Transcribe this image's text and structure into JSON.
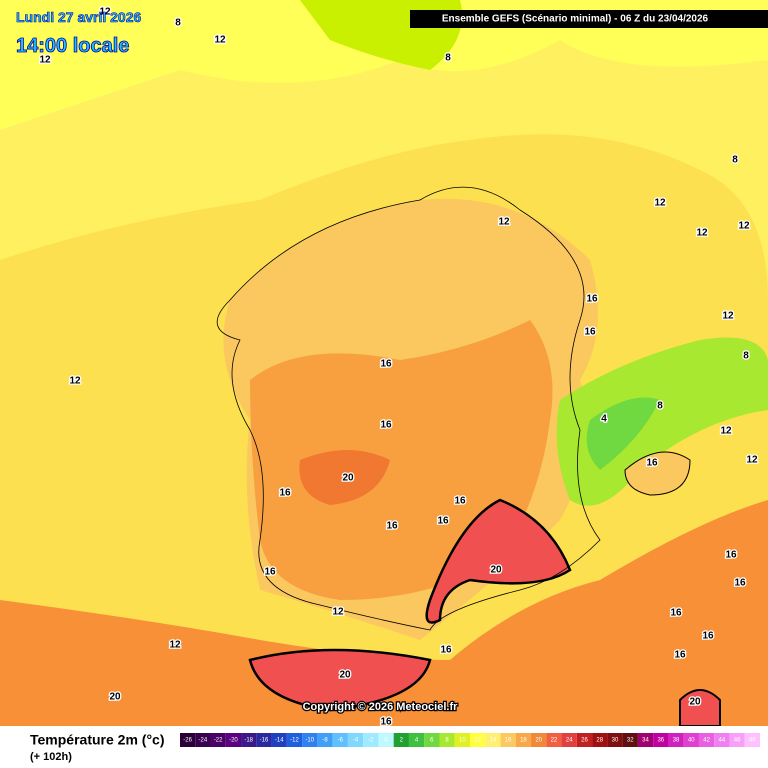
{
  "header": {
    "date": "Lundi 27 avril 2026",
    "time": "14:00 locale",
    "title": "Ensemble GEFS  (Scénario minimal) - 06 Z du 23/04/2026"
  },
  "contour_labels": [
    "8",
    "12",
    "12",
    "12",
    "8",
    "8",
    "12",
    "12",
    "12",
    "12",
    "16",
    "16",
    "12",
    "8",
    "12",
    "16",
    "8",
    "4",
    "16",
    "12",
    "12",
    "16",
    "20",
    "16",
    "16",
    "16",
    "16",
    "20",
    "16",
    "16",
    "16",
    "12",
    "16",
    "16",
    "12",
    "16",
    "16",
    "20",
    "20",
    "20",
    "16"
  ],
  "copyright": "Copyright © 2026 Meteociel.fr",
  "legend": {
    "title": "Température 2m (°c)",
    "lead": "(+ 102h)",
    "scale": [
      -26,
      -24,
      -22,
      -20,
      -18,
      -16,
      -14,
      -12,
      -10,
      -8,
      -6,
      -4,
      -2,
      0,
      2,
      4,
      6,
      8,
      10,
      12,
      14,
      16,
      18,
      20,
      22,
      24,
      26,
      28,
      30,
      32,
      34,
      36,
      38,
      40,
      42,
      44,
      46,
      48
    ],
    "colors": [
      "#2b0038",
      "#3a0050",
      "#4a0066",
      "#5a0080",
      "#3a1a8a",
      "#2a2aa0",
      "#2040c0",
      "#2060e0",
      "#3080f0",
      "#40a0f8",
      "#60c0ff",
      "#80d8ff",
      "#a0eaff",
      "#c0f8ff",
      "#20a030",
      "#40c040",
      "#70d840",
      "#a8e830",
      "#e0f020",
      "#ffff40",
      "#fff070",
      "#fcc860",
      "#f8a848",
      "#f08838",
      "#f06040",
      "#e04040",
      "#c02020",
      "#a01010",
      "#801010",
      "#601010",
      "#a00070",
      "#c000a0",
      "#d020c0",
      "#e040d0",
      "#e860e0",
      "#f080f0",
      "#f8a0f8",
      "#ffc0ff"
    ]
  }
}
